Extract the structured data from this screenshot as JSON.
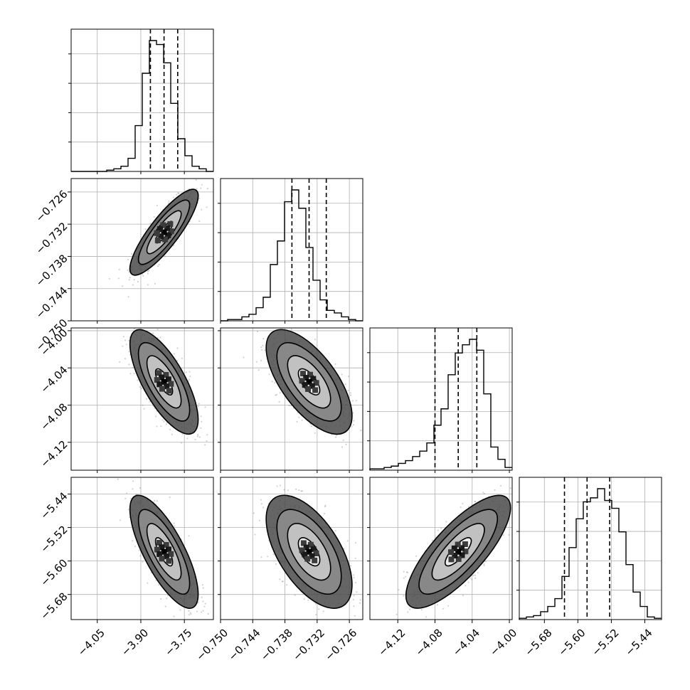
{
  "chart_data": {
    "type": "corner",
    "colors": {
      "ink": "#000000",
      "grid": "#b0b0b0",
      "scatter": "#7f7f7f"
    },
    "grid": true,
    "parameters": [
      {
        "index": 0,
        "range": [
          -4.14,
          -3.65
        ],
        "quantiles": [
          -3.867,
          -3.82,
          -3.773
        ],
        "x_ticks": [
          "-4.05",
          "-3.90",
          "-3.75"
        ],
        "y_ticks": []
      },
      {
        "index": 1,
        "range": [
          -0.75,
          -0.7235
        ],
        "quantiles": [
          -0.7367,
          -0.7335,
          -0.7303
        ],
        "x_ticks": [
          "-0.750",
          "-0.744",
          "-0.738",
          "-0.732",
          "-0.726"
        ],
        "y_ticks": [
          "-0.726",
          "-0.732",
          "-0.738",
          "-0.744",
          "-0.750"
        ]
      },
      {
        "index": 2,
        "range": [
          -4.15,
          -3.997
        ],
        "quantiles": [
          -4.08,
          -4.055,
          -4.035
        ],
        "x_ticks": [
          "-4.12",
          "-4.08",
          "-4.04",
          "-4.00"
        ],
        "y_ticks": [
          "-4.00",
          "-4.04",
          "-4.08",
          "-4.12"
        ]
      },
      {
        "index": 3,
        "range": [
          -5.74,
          -5.4
        ],
        "quantiles": [
          -5.632,
          -5.578,
          -5.524
        ],
        "x_ticks": [
          "-5.68",
          "-5.60",
          "-5.52",
          "-5.44"
        ],
        "y_ticks": [
          "-5.44",
          "-5.52",
          "-5.60",
          "-5.68"
        ]
      }
    ],
    "histograms": [
      {
        "param": 0,
        "bin_start": -4.14,
        "bin_width": 0.0245,
        "counts": [
          0,
          0,
          0,
          0,
          0,
          1,
          2,
          4,
          10,
          35,
          75,
          100,
          97,
          83,
          52,
          25,
          12,
          4,
          2,
          0
        ]
      },
      {
        "param": 1,
        "bin_start": -0.75,
        "bin_width": 0.001325,
        "counts": [
          0,
          1,
          1,
          3,
          5,
          10,
          18,
          43,
          61,
          91,
          100,
          86,
          56,
          31,
          16,
          8,
          6,
          3,
          1,
          0
        ]
      },
      {
        "param": 2,
        "bin_start": -4.15,
        "bin_width": 0.00765,
        "counts": [
          1,
          1,
          2,
          3,
          5,
          7,
          10,
          14,
          20,
          33,
          45,
          70,
          86,
          92,
          96,
          88,
          56,
          17,
          8,
          2
        ]
      },
      {
        "param": 3,
        "bin_start": -5.74,
        "bin_width": 0.017,
        "counts": [
          1,
          2,
          3,
          6,
          10,
          16,
          33,
          55,
          77,
          90,
          93,
          100,
          91,
          85,
          67,
          42,
          21,
          10,
          2,
          1
        ]
      }
    ],
    "pairs": [
      {
        "x_param": 0,
        "y_param": 1,
        "rho": 0.85
      },
      {
        "x_param": 0,
        "y_param": 2,
        "rho": -0.72
      },
      {
        "x_param": 1,
        "y_param": 2,
        "rho": -0.65
      },
      {
        "x_param": 0,
        "y_param": 3,
        "rho": -0.75
      },
      {
        "x_param": 1,
        "y_param": 3,
        "rho": -0.58
      },
      {
        "x_param": 2,
        "y_param": 3,
        "rho": 0.78
      }
    ],
    "contour_levels_sigma": [
      0.5,
      1.0,
      1.5,
      2.0
    ]
  }
}
